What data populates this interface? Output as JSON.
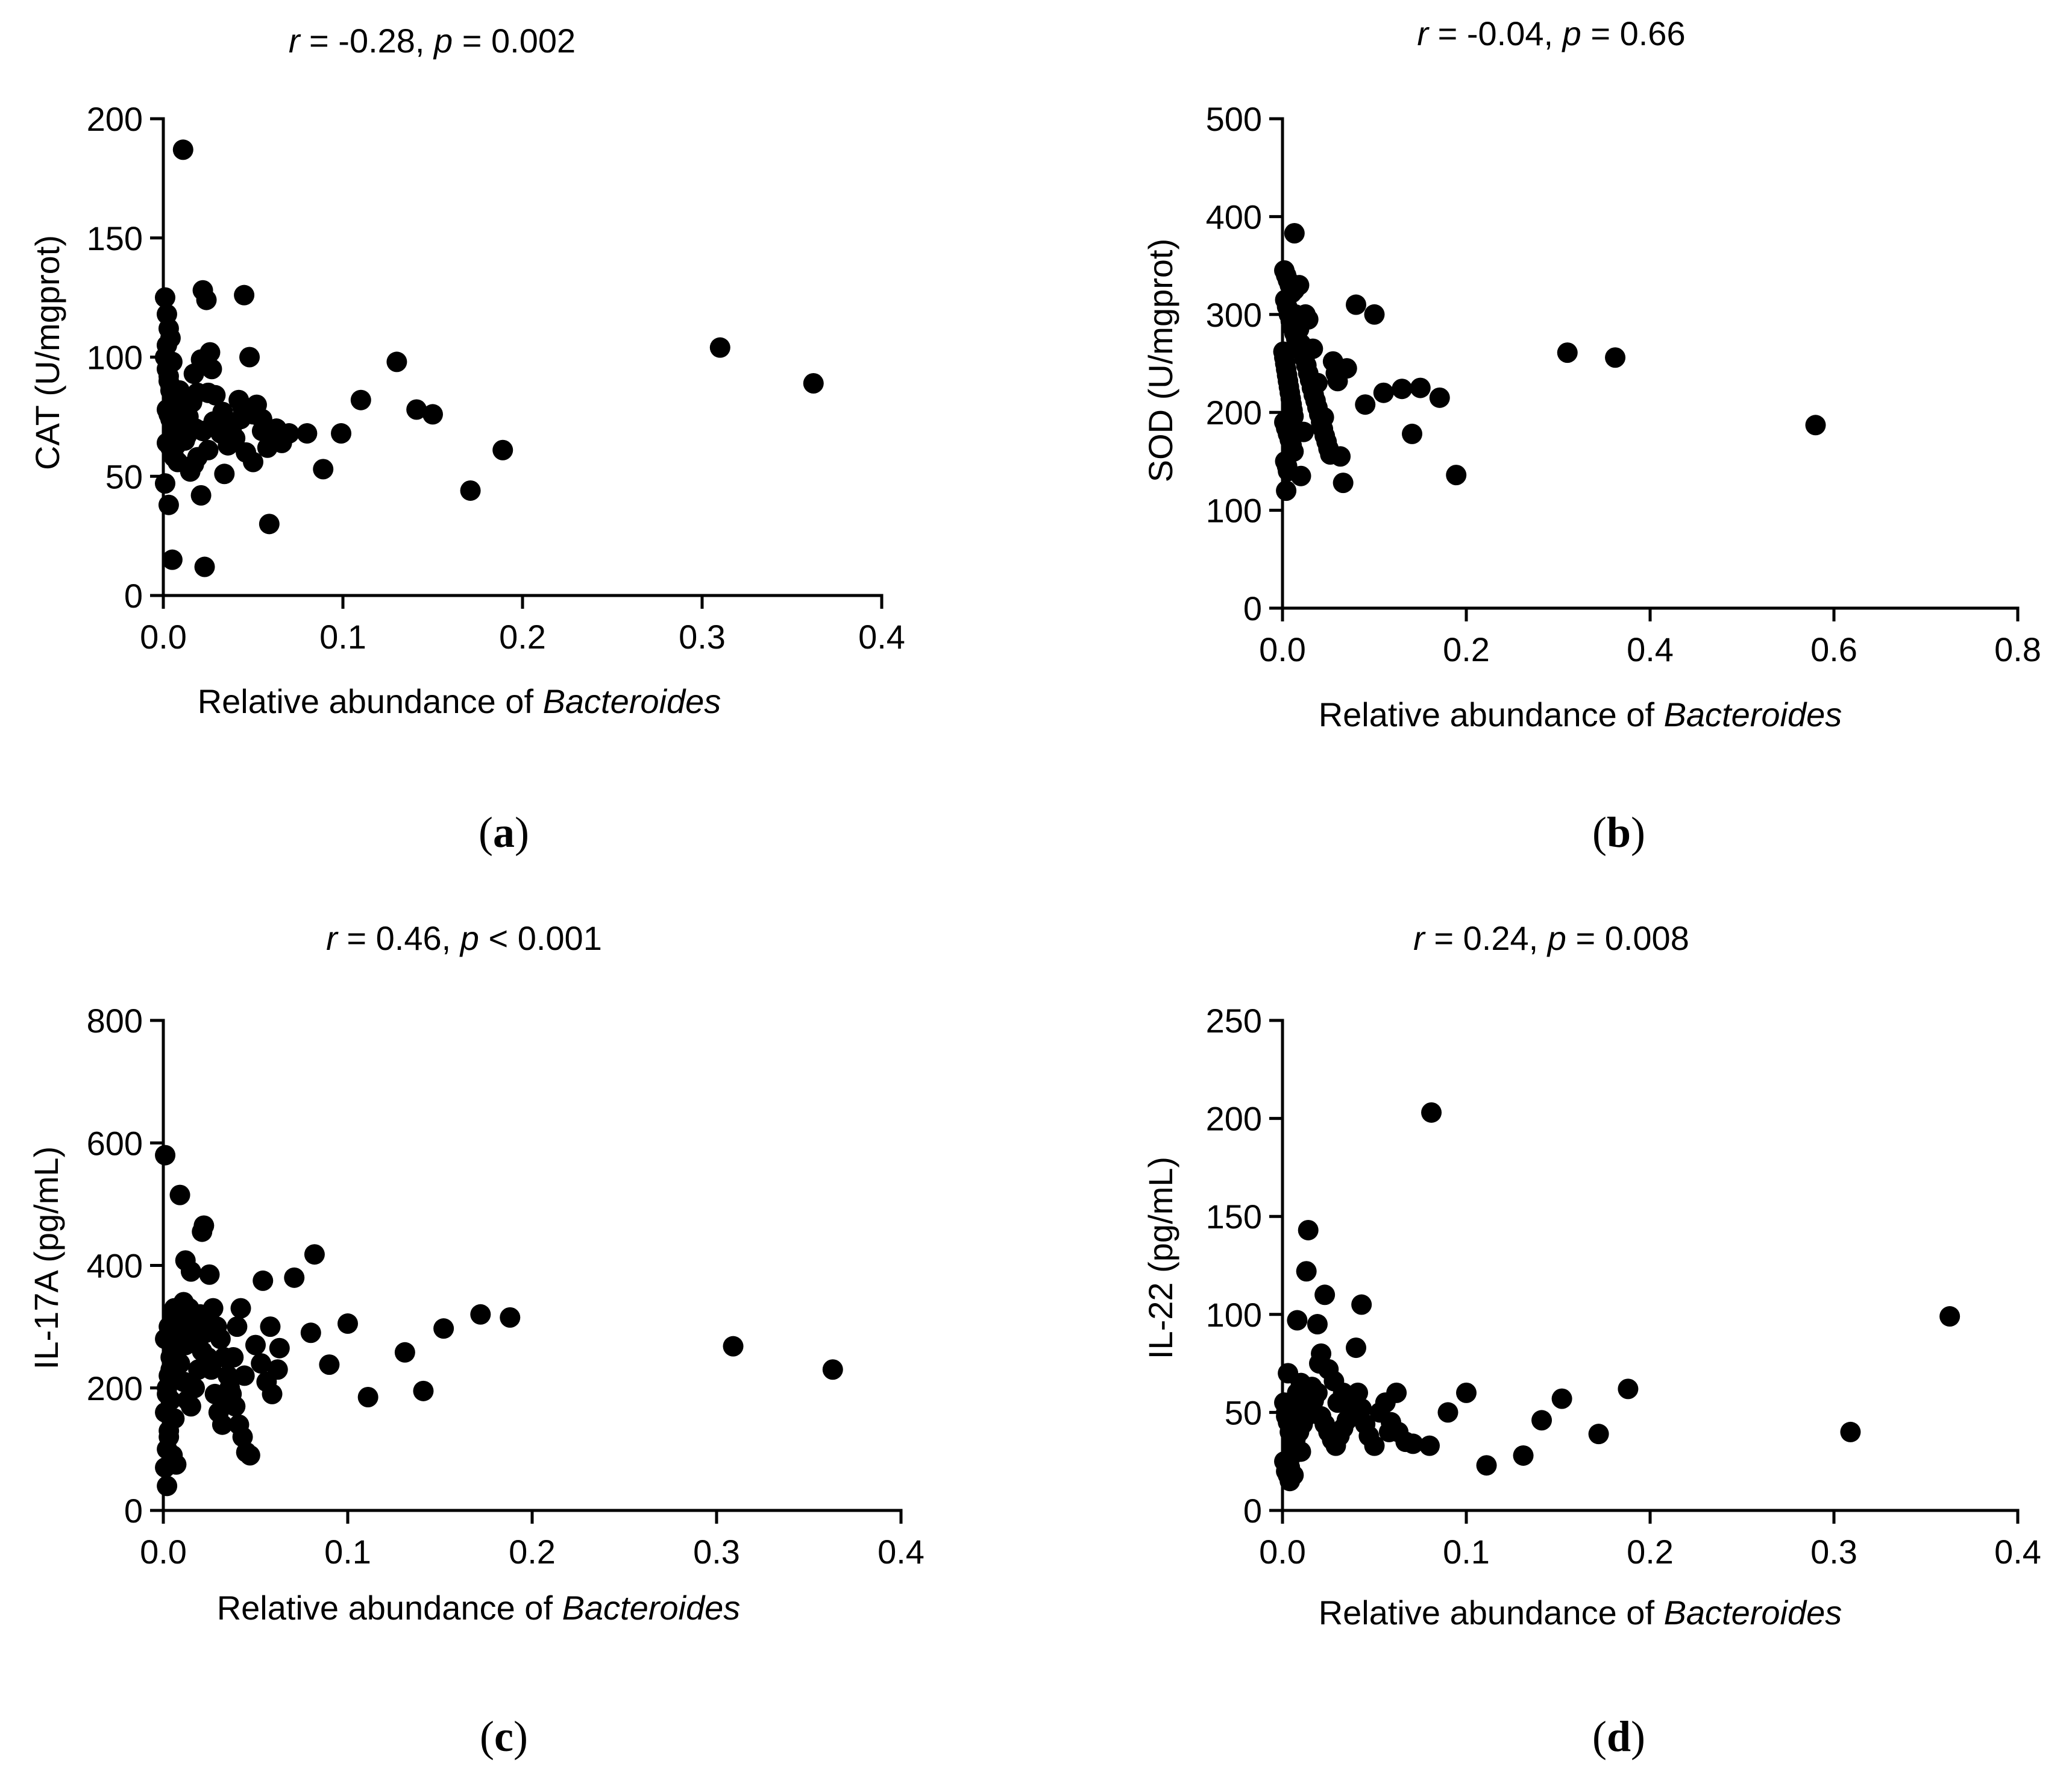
{
  "chart_data": [
    {
      "type": "scatter",
      "panel_label": {
        "open": "(",
        "letter": "a",
        "close": ")"
      },
      "title": {
        "r_symbol": "r",
        "r_text": " = -0.28, ",
        "p_symbol": "p",
        "p_text": " = 0.002"
      },
      "xlabel": {
        "prefix": "Relative abundance of ",
        "italic": "Bacteroides"
      },
      "ylabel": "CAT (U/mgprot)",
      "xlim": [
        0,
        0.4
      ],
      "ylim": [
        0,
        200
      ],
      "xticks": [
        "0.0",
        "0.1",
        "0.2",
        "0.3",
        "0.4"
      ],
      "yticks": [
        "0",
        "50",
        "100",
        "150",
        "200"
      ],
      "x": [
        0.011,
        0.001,
        0.002,
        0.003,
        0.004,
        0.001,
        0.002,
        0.003,
        0.004,
        0.005,
        0.006,
        0.007,
        0.002,
        0.003,
        0.004,
        0.005,
        0.006,
        0.007,
        0.008,
        0.002,
        0.004,
        0.005,
        0.006,
        0.008,
        0.009,
        0.01,
        0.001,
        0.003,
        0.005,
        0.007,
        0.009,
        0.003,
        0.005,
        0.009,
        0.011,
        0.013,
        0.015,
        0.017,
        0.019,
        0.021,
        0.023,
        0.025,
        0.012,
        0.014,
        0.016,
        0.018,
        0.022,
        0.026,
        0.027,
        0.03,
        0.032,
        0.034,
        0.036,
        0.038,
        0.04,
        0.042,
        0.044,
        0.046,
        0.028,
        0.029,
        0.05,
        0.052,
        0.055,
        0.058,
        0.06,
        0.063,
        0.066,
        0.07,
        0.08,
        0.089,
        0.099,
        0.11,
        0.13,
        0.141,
        0.15,
        0.171,
        0.189,
        0.31,
        0.362,
        0.002,
        0.004,
        0.022,
        0.024,
        0.021,
        0.019,
        0.045,
        0.048,
        0.017,
        0.036,
        0.022,
        0.05,
        0.059,
        0.025,
        0.043,
        0.055,
        0.033
      ],
      "y": [
        187,
        125,
        118,
        112,
        108,
        100,
        95,
        90,
        86,
        84,
        82,
        80,
        78,
        76,
        74,
        72,
        70,
        68,
        66,
        64,
        62,
        60,
        58,
        56,
        73,
        77,
        47,
        38,
        15,
        63,
        69,
        92,
        98,
        86,
        71,
        67,
        52,
        55,
        58,
        42,
        12,
        61,
        65,
        75,
        81,
        70,
        99,
        102,
        95,
        72,
        68,
        51,
        63,
        70,
        66,
        82,
        79,
        60,
        73,
        84,
        76,
        80,
        74,
        62,
        66,
        70,
        64,
        68,
        68,
        53,
        68,
        82,
        98,
        78,
        76,
        44,
        61,
        104,
        89,
        105,
        88,
        128,
        124,
        99,
        85,
        126,
        100,
        93,
        73,
        69,
        56,
        30,
        85,
        74,
        69,
        77
      ]
    },
    {
      "type": "scatter",
      "panel_label": {
        "open": "(",
        "letter": "b",
        "close": ")"
      },
      "title": {
        "r_symbol": "r",
        "r_text": " = -0.04, ",
        "p_symbol": "p",
        "p_text": " = 0.66"
      },
      "xlabel": {
        "prefix": "Relative abundance of ",
        "italic": "Bacteroides"
      },
      "ylabel": "SOD (U/mgprot)",
      "xlim": [
        0,
        0.8
      ],
      "ylim": [
        0,
        500
      ],
      "xticks": [
        "0.0",
        "0.2",
        "0.4",
        "0.6",
        "0.8"
      ],
      "yticks": [
        "0",
        "100",
        "200",
        "300",
        "400",
        "500"
      ],
      "x": [
        0.013,
        0.002,
        0.004,
        0.006,
        0.008,
        0.01,
        0.003,
        0.005,
        0.007,
        0.009,
        0.011,
        0.013,
        0.015,
        0.017,
        0.001,
        0.002,
        0.003,
        0.004,
        0.005,
        0.006,
        0.007,
        0.008,
        0.009,
        0.01,
        0.011,
        0.012,
        0.002,
        0.004,
        0.006,
        0.008,
        0.01,
        0.012,
        0.003,
        0.005,
        0.014,
        0.016,
        0.018,
        0.02,
        0.022,
        0.024,
        0.026,
        0.028,
        0.03,
        0.032,
        0.034,
        0.036,
        0.038,
        0.04,
        0.042,
        0.044,
        0.046,
        0.048,
        0.05,
        0.052,
        0.055,
        0.058,
        0.06,
        0.063,
        0.066,
        0.07,
        0.08,
        0.09,
        0.1,
        0.11,
        0.13,
        0.141,
        0.15,
        0.171,
        0.189,
        0.31,
        0.362,
        0.58,
        0.004,
        0.006,
        0.02,
        0.025,
        0.028,
        0.033,
        0.038,
        0.045,
        0.013,
        0.018,
        0.023
      ],
      "y": [
        383,
        345,
        340,
        335,
        330,
        322,
        315,
        308,
        300,
        293,
        287,
        281,
        275,
        268,
        262,
        256,
        250,
        244,
        238,
        232,
        226,
        220,
        214,
        208,
        202,
        196,
        190,
        184,
        178,
        172,
        166,
        160,
        150,
        145,
        300,
        293,
        285,
        270,
        262,
        255,
        248,
        240,
        233,
        225,
        218,
        212,
        205,
        198,
        190,
        183,
        176,
        170,
        163,
        157,
        252,
        240,
        232,
        155,
        128,
        245,
        310,
        208,
        300,
        220,
        224,
        178,
        225,
        215,
        136,
        261,
        256,
        187,
        120,
        140,
        135,
        300,
        295,
        265,
        230,
        195,
        325,
        330,
        180
      ]
    },
    {
      "type": "scatter",
      "panel_label": {
        "open": "(",
        "letter": "c",
        "close": ")"
      },
      "title": {
        "r_symbol": "r",
        "r_text": " = 0.46, ",
        "p_symbol": "p",
        "p_text": " < 0.001"
      },
      "xlabel": {
        "prefix": "Relative abundance of ",
        "italic": "Bacteroides"
      },
      "ylabel": "IL-17A (pg/mL)",
      "xlim": [
        0,
        0.4
      ],
      "ylim": [
        0,
        800
      ],
      "xticks": [
        "0.0",
        "0.1",
        "0.2",
        "0.3",
        "0.4"
      ],
      "yticks": [
        "0",
        "200",
        "400",
        "600",
        "800"
      ],
      "x": [
        0.001,
        0.002,
        0.001,
        0.002,
        0.003,
        0.001,
        0.002,
        0.003,
        0.004,
        0.001,
        0.003,
        0.005,
        0.002,
        0.004,
        0.006,
        0.003,
        0.005,
        0.007,
        0.004,
        0.006,
        0.008,
        0.01,
        0.012,
        0.009,
        0.011,
        0.013,
        0.015,
        0.017,
        0.019,
        0.021,
        0.023,
        0.025,
        0.027,
        0.029,
        0.031,
        0.033,
        0.035,
        0.037,
        0.039,
        0.041,
        0.043,
        0.045,
        0.047,
        0.05,
        0.053,
        0.056,
        0.059,
        0.062,
        0.014,
        0.016,
        0.018,
        0.02,
        0.022,
        0.024,
        0.026,
        0.028,
        0.03,
        0.032,
        0.034,
        0.036,
        0.038,
        0.04,
        0.042,
        0.044,
        0.009,
        0.012,
        0.015,
        0.021,
        0.022,
        0.025,
        0.054,
        0.071,
        0.082,
        0.08,
        0.09,
        0.1,
        0.111,
        0.131,
        0.141,
        0.152,
        0.172,
        0.188,
        0.309,
        0.363,
        0.058,
        0.063,
        0.006,
        0.008,
        0.011,
        0.013
      ],
      "y": [
        580,
        40,
        70,
        100,
        130,
        160,
        190,
        220,
        250,
        280,
        300,
        320,
        200,
        180,
        150,
        120,
        90,
        75,
        230,
        260,
        290,
        310,
        270,
        240,
        210,
        180,
        170,
        200,
        230,
        260,
        290,
        310,
        330,
        300,
        280,
        250,
        220,
        190,
        170,
        140,
        120,
        95,
        90,
        270,
        240,
        210,
        190,
        230,
        330,
        300,
        280,
        320,
        290,
        250,
        230,
        190,
        160,
        140,
        175,
        200,
        250,
        300,
        330,
        220,
        515,
        408,
        390,
        455,
        465,
        385,
        375,
        380,
        418,
        290,
        238,
        305,
        185,
        258,
        195,
        297,
        320,
        315,
        268,
        230,
        300,
        265,
        330,
        300,
        340,
        310
      ]
    },
    {
      "type": "scatter",
      "panel_label": {
        "open": "(",
        "letter": "d",
        "close": ")"
      },
      "title": {
        "r_symbol": "r",
        "r_text": " = 0.24, ",
        "p_symbol": "p",
        "p_text": " = 0.008"
      },
      "xlabel": {
        "prefix": "Relative abundance of ",
        "italic": "Bacteroides"
      },
      "ylabel": "IL-22 (pg/mL)",
      "xlim": [
        0,
        0.4
      ],
      "ylim": [
        0,
        250
      ],
      "xticks": [
        "0.0",
        "0.1",
        "0.2",
        "0.3",
        "0.4"
      ],
      "yticks": [
        "0",
        "50",
        "100",
        "150",
        "200",
        "250"
      ],
      "x": [
        0.081,
        0.014,
        0.013,
        0.043,
        0.023,
        0.008,
        0.019,
        0.021,
        0.04,
        0.001,
        0.002,
        0.003,
        0.004,
        0.005,
        0.006,
        0.001,
        0.002,
        0.003,
        0.004,
        0.005,
        0.006,
        0.007,
        0.008,
        0.002,
        0.004,
        0.006,
        0.008,
        0.01,
        0.003,
        0.005,
        0.007,
        0.009,
        0.011,
        0.013,
        0.015,
        0.017,
        0.019,
        0.021,
        0.023,
        0.025,
        0.027,
        0.029,
        0.031,
        0.033,
        0.035,
        0.037,
        0.039,
        0.041,
        0.043,
        0.045,
        0.047,
        0.05,
        0.053,
        0.056,
        0.059,
        0.063,
        0.067,
        0.071,
        0.08,
        0.09,
        0.1,
        0.111,
        0.131,
        0.141,
        0.152,
        0.172,
        0.188,
        0.309,
        0.363,
        0.02,
        0.025,
        0.028,
        0.033,
        0.012,
        0.016,
        0.03,
        0.038,
        0.058,
        0.062,
        0.004,
        0.006,
        0.01
      ],
      "y": [
        203,
        143,
        122,
        105,
        110,
        97,
        95,
        80,
        83,
        55,
        50,
        45,
        40,
        35,
        30,
        25,
        20,
        18,
        22,
        28,
        33,
        38,
        43,
        48,
        52,
        56,
        60,
        65,
        70,
        32,
        36,
        40,
        44,
        48,
        52,
        56,
        60,
        48,
        44,
        40,
        36,
        33,
        38,
        42,
        46,
        50,
        55,
        60,
        52,
        44,
        38,
        33,
        50,
        55,
        45,
        40,
        35,
        34,
        33,
        50,
        60,
        23,
        28,
        46,
        57,
        39,
        62,
        40,
        99,
        75,
        72,
        66,
        60,
        58,
        63,
        55,
        48,
        40,
        60,
        15,
        18,
        30
      ]
    }
  ]
}
